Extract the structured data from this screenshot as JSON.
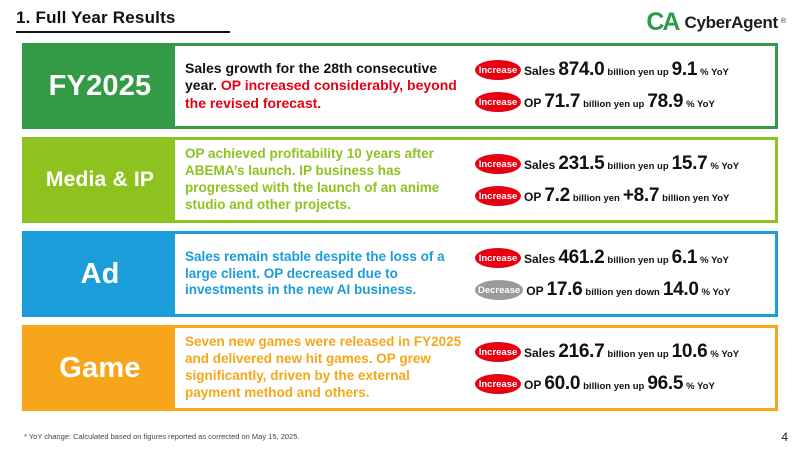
{
  "slide": {
    "title": "1.  Full Year Results",
    "page_number": "4",
    "footnote": "* YoY change: Calculated based on figures reported as corrected on May 15, 2025."
  },
  "logo": {
    "mark": "CA",
    "name": "CyberAgent",
    "registered": "®",
    "color": "#2e9b48"
  },
  "segments": [
    {
      "label": "FY2025",
      "color": "#339a46",
      "description": [
        {
          "text": "Sales growth for the 28th consecutive year.  ",
          "color": "#111111"
        },
        {
          "text": "OP increased considerably, beyond the revised forecast.",
          "color": "#e60012"
        }
      ],
      "metrics": [
        {
          "badge": "Increase",
          "badge_color": "#e60012",
          "label": "Sales",
          "value": "874.0",
          "mid": "billion yen  up",
          "change": "9.1",
          "suffix": "% YoY"
        },
        {
          "badge": "Increase",
          "badge_color": "#e60012",
          "label": "OP",
          "value": "71.7",
          "mid": "billion yen  up",
          "change": "78.9",
          "suffix": "% YoY"
        }
      ]
    },
    {
      "label": "Media & IP",
      "color": "#8ec21f",
      "description": [
        {
          "text": "OP achieved profitability 10 years after ABEMA’s launch. IP business has progressed with the launch of an anime studio and other projects.",
          "color": "#8ec21f"
        }
      ],
      "metrics": [
        {
          "badge": "Increase",
          "badge_color": "#e60012",
          "label": "Sales",
          "value": "231.5",
          "mid": "billion yen  up",
          "change": "15.7",
          "suffix": "% YoY"
        },
        {
          "badge": "Increase",
          "badge_color": "#e60012",
          "label": "OP",
          "value": "7.2",
          "mid": "billion yen",
          "change": "+8.7",
          "suffix": "billion yen YoY"
        }
      ]
    },
    {
      "label": "Ad",
      "color": "#1b9dd9",
      "description": [
        {
          "text": "Sales remain stable despite the loss of a large client. OP decreased due to investments in the new AI business.",
          "color": "#1b9dd9"
        }
      ],
      "metrics": [
        {
          "badge": "Increase",
          "badge_color": "#e60012",
          "label": "Sales",
          "value": "461.2",
          "mid": "billion yen  up",
          "change": "6.1",
          "suffix": "% YoY"
        },
        {
          "badge": "Decrease",
          "badge_color": "#9a9a9a",
          "label": "OP",
          "value": "17.6",
          "mid": "billion yen  down",
          "change": "14.0",
          "suffix": "% YoY"
        }
      ]
    },
    {
      "label": "Game",
      "color": "#f7a61b",
      "description": [
        {
          "text": "Seven new games were released in FY2025 and delivered new hit games. OP grew significantly, driven by the external payment method and others.",
          "color": "#f7a61b"
        }
      ],
      "metrics": [
        {
          "badge": "Increase",
          "badge_color": "#e60012",
          "label": "Sales",
          "value": "216.7",
          "mid": "billion yen  up",
          "change": "10.6",
          "suffix": "% YoY"
        },
        {
          "badge": "Increase",
          "badge_color": "#e60012",
          "label": "OP",
          "value": "60.0",
          "mid": "billion yen  up",
          "change": "96.5",
          "suffix": "% YoY"
        }
      ]
    }
  ]
}
